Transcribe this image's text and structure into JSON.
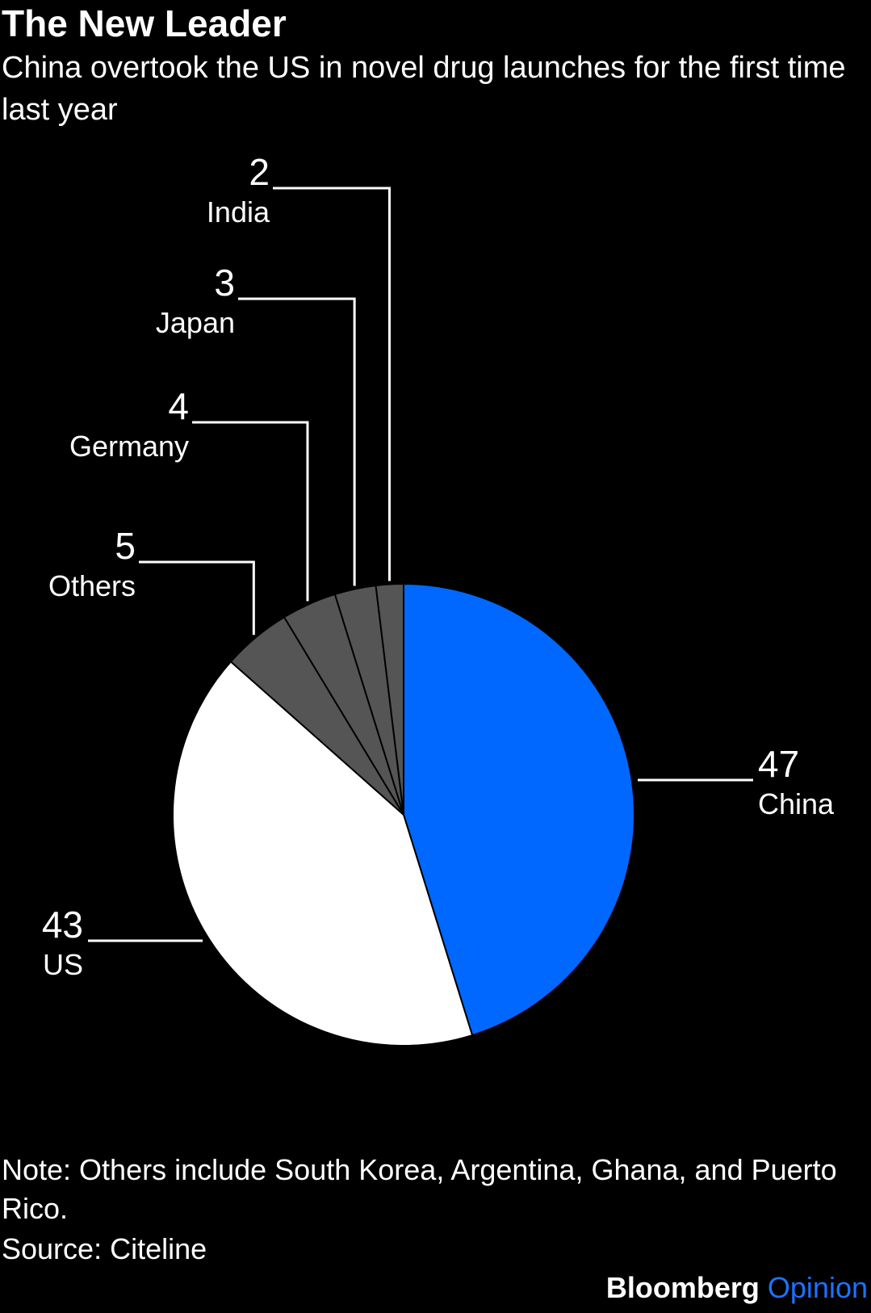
{
  "chart_data": {
    "type": "pie",
    "title": "The New Leader",
    "subtitle": "China overtook the US in novel drug launches for the first time last year",
    "categories": [
      "China",
      "US",
      "Others",
      "Germany",
      "Japan",
      "India"
    ],
    "values": [
      47,
      43,
      5,
      4,
      3,
      2
    ],
    "colors": [
      "#0068ff",
      "#ffffff",
      "#555555",
      "#555555",
      "#555555",
      "#555555"
    ],
    "note": "Note: Others include South Korea, Argentina, Ghana, and Puerto Rico.",
    "source": "Source: Citeline",
    "brand": "Bloomberg",
    "brand_suffix": "Opinion"
  }
}
